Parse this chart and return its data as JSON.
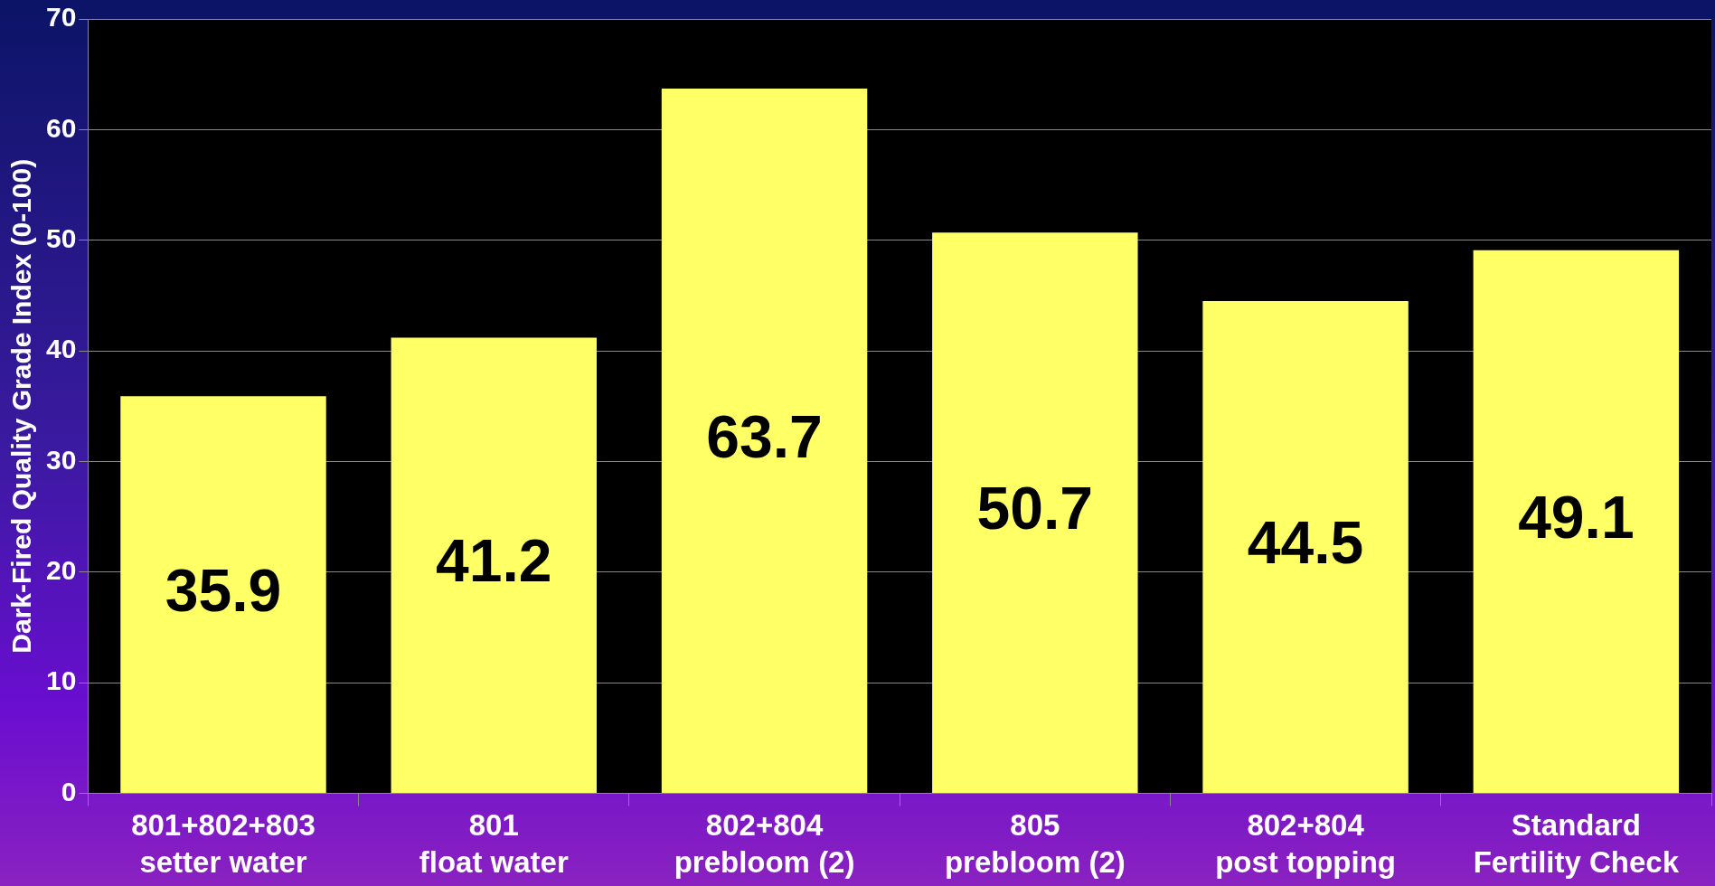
{
  "chart_data": {
    "type": "bar",
    "ylabel": "Dark-Fired Quality Grade Index (0-100)",
    "categories": [
      "801+802+803\nsetter water",
      "801\nfloat water",
      "802+804\nprebloom (2)",
      "805\nprebloom (2)",
      "802+804\npost topping",
      "Standard\nFertility Check"
    ],
    "values": [
      35.9,
      41.2,
      63.7,
      50.7,
      44.5,
      49.1
    ],
    "color": "#ffff66",
    "ylim": [
      0,
      70
    ],
    "yticks": [
      0,
      10,
      20,
      30,
      40,
      50,
      60,
      70
    ],
    "grid": "y",
    "data_labels": true,
    "legend": false
  }
}
